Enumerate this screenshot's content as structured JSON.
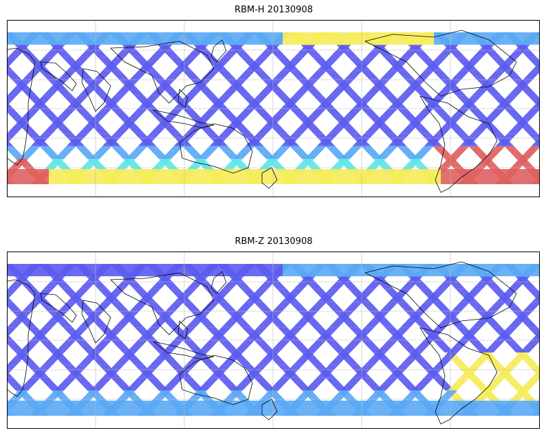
{
  "panels": [
    {
      "id": "h",
      "title": "RBM-H 20130908"
    },
    {
      "id": "z",
      "title": "RBM-Z 20130908"
    }
  ],
  "colors": {
    "low": "#5b5bf0",
    "mid_low": "#5aa8f5",
    "mid": "#5ee6e6",
    "mid_high": "#f5ec5a",
    "high": "#e06060",
    "coast": "#000000",
    "grid": "#bbbbbb"
  },
  "gridlines": {
    "lon": [
      -180,
      -120,
      -60,
      0,
      60,
      120,
      180
    ],
    "lat": [
      -60,
      -30,
      0,
      30,
      60
    ]
  },
  "map": {
    "projection": "PlateCarree",
    "lon_range": [
      60,
      240
    ],
    "lat_range": [
      -60,
      60
    ]
  }
}
